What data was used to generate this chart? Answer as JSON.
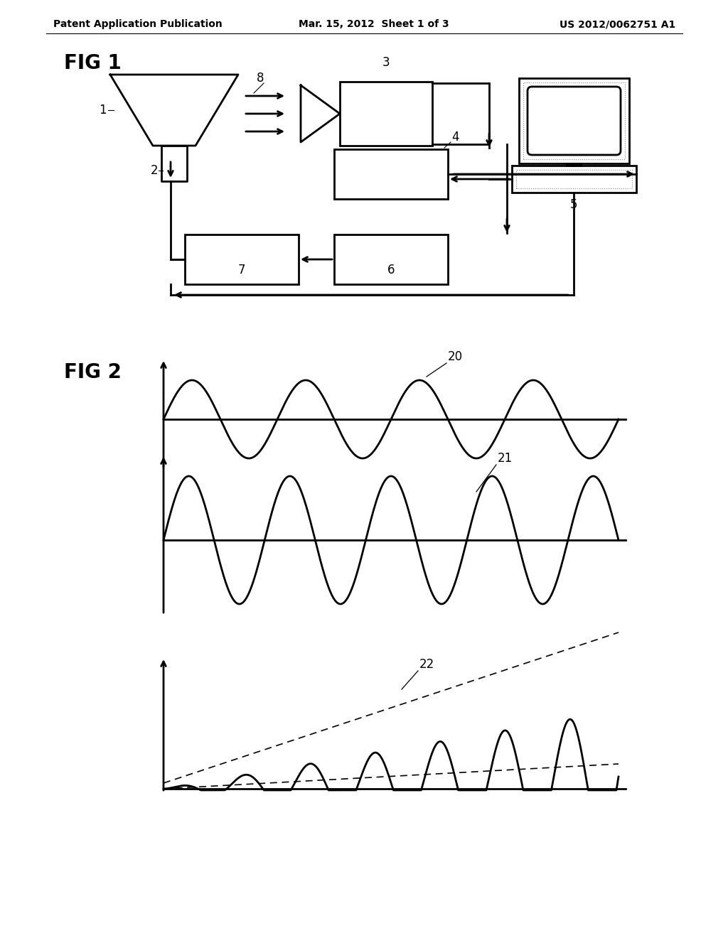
{
  "bg_color": "#ffffff",
  "text_color": "#000000",
  "header_left": "Patent Application Publication",
  "header_mid": "Mar. 15, 2012  Sheet 1 of 3",
  "header_right": "US 2012/0062751 A1",
  "fig1_label": "FIG 1",
  "fig2_label": "FIG 2",
  "label_20": "20",
  "label_21": "21",
  "label_22": "22",
  "label_1": "1",
  "label_2": "2",
  "label_3": "3",
  "label_4": "4",
  "label_5": "5",
  "label_6": "6",
  "label_7": "7",
  "label_8": "8",
  "line_color": "#000000",
  "line_width": 2.0
}
